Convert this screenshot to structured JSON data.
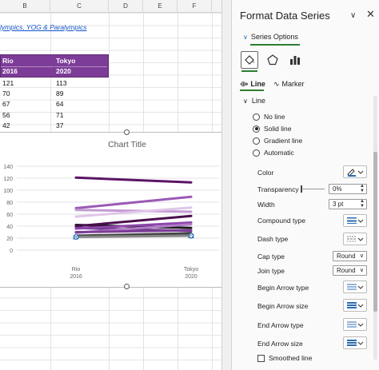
{
  "sheet": {
    "columns": [
      "B",
      "C",
      "D",
      "E",
      "F"
    ],
    "link_text": "lympics, YOG & Paralympics",
    "header": {
      "col1_top": "Rio",
      "col1_bottom": "2016",
      "col2_top": "Tokyo",
      "col2_bottom": "2020",
      "fill_color": "#7d3c98"
    },
    "rows": [
      {
        "rio": "121",
        "tokyo": "113"
      },
      {
        "rio": "70",
        "tokyo": "89"
      },
      {
        "rio": "67",
        "tokyo": "64"
      },
      {
        "rio": "56",
        "tokyo": "71"
      },
      {
        "rio": "42",
        "tokyo": "37"
      }
    ]
  },
  "chart_data": {
    "type": "line",
    "title": "Chart Title",
    "categories": [
      "Rio\n2016",
      "Tokyo\n2020"
    ],
    "category_lines": [
      [
        "Rio",
        "2016"
      ],
      [
        "Tokyo",
        "2020"
      ]
    ],
    "y_ticks": [
      0,
      20,
      40,
      60,
      80,
      100,
      120,
      140
    ],
    "ylim": [
      0,
      140
    ],
    "grid": true,
    "series": [
      {
        "values": [
          121,
          113
        ],
        "color": "#5b1465"
      },
      {
        "values": [
          70,
          89
        ],
        "color": "#9b59b6"
      },
      {
        "values": [
          67,
          64
        ],
        "color": "#c39bd3"
      },
      {
        "values": [
          56,
          71
        ],
        "color": "#e0c6ea"
      },
      {
        "values": [
          42,
          37
        ],
        "color": "#1c1c1c"
      },
      {
        "values": [
          40,
          57
        ],
        "color": "#4a0e4e"
      },
      {
        "values": [
          37,
          32
        ],
        "color": "#6c3483"
      },
      {
        "values": [
          36,
          46
        ],
        "color": "#8e44ad"
      },
      {
        "values": [
          29,
          43
        ],
        "color": "#b07cc6"
      },
      {
        "values": [
          30,
          33
        ],
        "color": "#7d3c98"
      },
      {
        "values": [
          24,
          28
        ],
        "color": "#444444"
      },
      {
        "values": [
          22,
          24
        ],
        "color": "#888888"
      }
    ],
    "selected_point_labels": [
      "20",
      "22"
    ]
  },
  "pane": {
    "title": "Format Data Series",
    "series_options": "Series Options",
    "tabs": {
      "line": "Line",
      "marker": "Marker"
    },
    "section": "Line",
    "radios": [
      {
        "label": "No line",
        "checked": false
      },
      {
        "label": "Solid line",
        "checked": true
      },
      {
        "label": "Gradient line",
        "checked": false
      },
      {
        "label": "Automatic",
        "checked": false
      }
    ],
    "color_label": "Color",
    "transparency_label": "Transparency",
    "transparency_value": "0%",
    "width_label": "Width",
    "width_value": "3 pt",
    "compound_label": "Compound type",
    "dash_label": "Dash type",
    "cap_label": "Cap type",
    "cap_value": "Round",
    "join_label": "Join type",
    "join_value": "Round",
    "begin_arrow_type_label": "Begin Arrow type",
    "begin_arrow_size_label": "Begin Arrow size",
    "end_arrow_type_label": "End Arrow type",
    "end_arrow_size_label": "End Arrow size",
    "smoothed_label": "Smoothed line",
    "accent_color": "#2e7d32"
  }
}
